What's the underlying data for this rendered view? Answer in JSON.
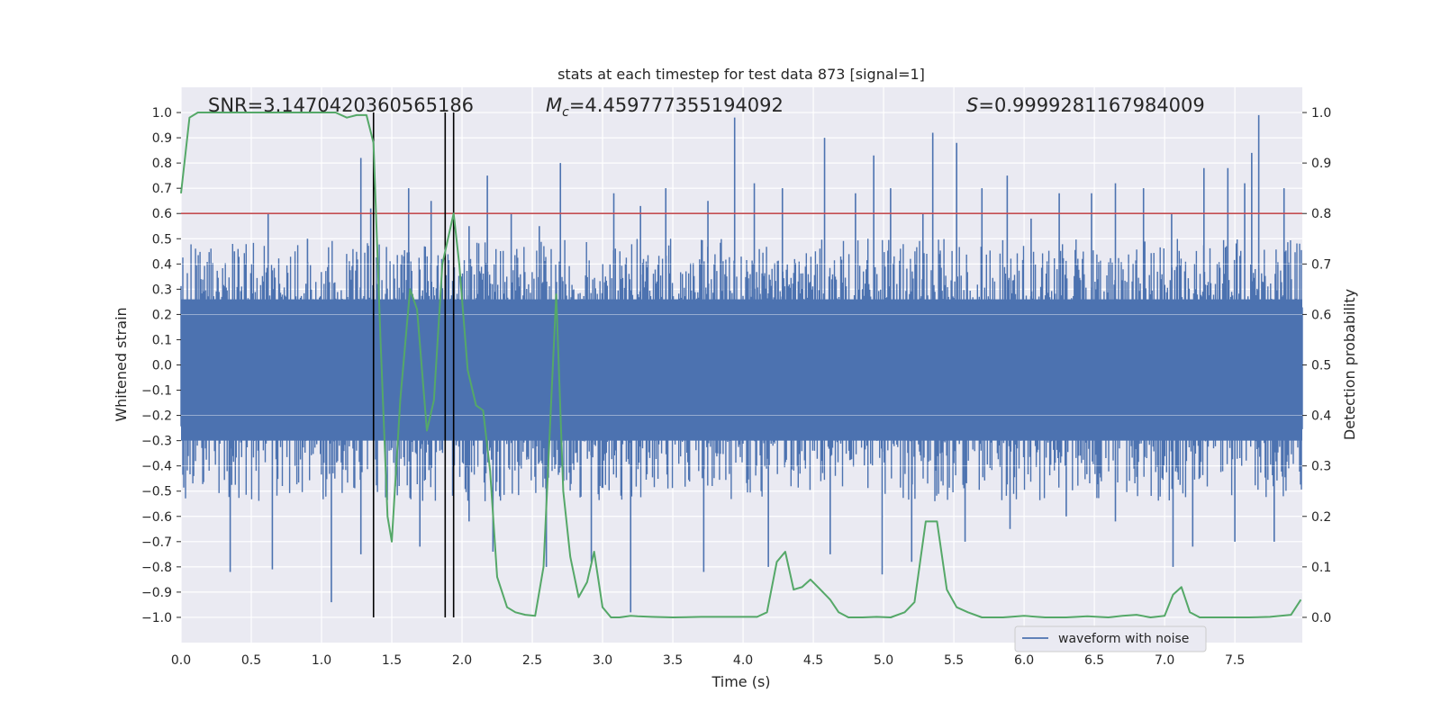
{
  "chart_data": {
    "type": "line",
    "title": "stats at each timestep for test data 873 [signal=1]",
    "xlabel": "Time (s)",
    "ylabel": "Whitened strain",
    "y2label": "Detection probability",
    "xlim": [
      0.0,
      7.98
    ],
    "ylim": [
      -1.1,
      1.1
    ],
    "y2lim": [
      -0.05,
      1.05
    ],
    "x_ticks": [
      "0.0",
      "0.5",
      "1.0",
      "1.5",
      "2.0",
      "2.5",
      "3.0",
      "3.5",
      "4.0",
      "4.5",
      "5.0",
      "5.5",
      "6.0",
      "6.5",
      "7.0",
      "7.5"
    ],
    "x_tick_values": [
      0.0,
      0.5,
      1.0,
      1.5,
      2.0,
      2.5,
      3.0,
      3.5,
      4.0,
      4.5,
      5.0,
      5.5,
      6.0,
      6.5,
      7.0,
      7.5
    ],
    "y_ticks": [
      "1.0",
      "0.9",
      "0.8",
      "0.7",
      "0.6",
      "0.5",
      "0.4",
      "0.3",
      "0.2",
      "0.1",
      "0.0",
      "−0.1",
      "−0.2",
      "−0.3",
      "−0.4",
      "−0.5",
      "−0.6",
      "−0.7",
      "−0.8",
      "−0.9",
      "−1.0"
    ],
    "y_tick_values": [
      1.0,
      0.9,
      0.8,
      0.7,
      0.6,
      0.5,
      0.4,
      0.3,
      0.2,
      0.1,
      0.0,
      -0.1,
      -0.2,
      -0.3,
      -0.4,
      -0.5,
      -0.6,
      -0.7,
      -0.8,
      -0.9,
      -1.0
    ],
    "y2_ticks": [
      "1.0",
      "0.9",
      "0.8",
      "0.7",
      "0.6",
      "0.5",
      "0.4",
      "0.3",
      "0.2",
      "0.1",
      "0.0"
    ],
    "y2_tick_values": [
      1.0,
      0.9,
      0.8,
      0.7,
      0.6,
      0.5,
      0.4,
      0.3,
      0.2,
      0.1,
      0.0
    ],
    "annotations": {
      "snr": "SNR=3.1470420360565186",
      "mc_symbol": "M",
      "mc_sub": "c",
      "mc_value": "=4.459777355194092",
      "s_symbol": "S",
      "s_value": "=0.9999281167984009"
    },
    "legend": {
      "label": "waveform with noise",
      "position": "lower-right"
    },
    "threshold": {
      "value": 0.6,
      "color": "#c44e52"
    },
    "vertical_lines": [
      1.37,
      1.88,
      1.94
    ],
    "waveform": {
      "name": "waveform with noise",
      "color": "#4c72b0",
      "t_start": 0.0,
      "t_end": 7.98,
      "core_envelope": 0.4,
      "spikes": [
        {
          "x": 0.38,
          "y": 0.45
        },
        {
          "x": 0.62,
          "y": 0.6
        },
        {
          "x": 0.9,
          "y": 0.5
        },
        {
          "x": 1.28,
          "y": 0.82
        },
        {
          "x": 1.35,
          "y": 0.62
        },
        {
          "x": 1.62,
          "y": 0.7
        },
        {
          "x": 1.78,
          "y": 0.65
        },
        {
          "x": 2.05,
          "y": 0.55
        },
        {
          "x": 2.18,
          "y": 0.75
        },
        {
          "x": 2.35,
          "y": 0.6
        },
        {
          "x": 2.55,
          "y": 0.55
        },
        {
          "x": 2.7,
          "y": 0.8
        },
        {
          "x": 3.08,
          "y": 0.68
        },
        {
          "x": 3.27,
          "y": 0.63
        },
        {
          "x": 3.45,
          "y": 0.7
        },
        {
          "x": 3.75,
          "y": 0.65
        },
        {
          "x": 3.94,
          "y": 0.98
        },
        {
          "x": 4.08,
          "y": 0.72
        },
        {
          "x": 4.28,
          "y": 0.7
        },
        {
          "x": 4.58,
          "y": 0.9
        },
        {
          "x": 4.8,
          "y": 0.68
        },
        {
          "x": 4.93,
          "y": 0.83
        },
        {
          "x": 5.05,
          "y": 0.7
        },
        {
          "x": 5.28,
          "y": 0.6
        },
        {
          "x": 5.35,
          "y": 0.92
        },
        {
          "x": 5.52,
          "y": 0.88
        },
        {
          "x": 5.7,
          "y": 0.7
        },
        {
          "x": 5.88,
          "y": 0.75
        },
        {
          "x": 6.05,
          "y": 0.58
        },
        {
          "x": 6.25,
          "y": 0.68
        },
        {
          "x": 6.48,
          "y": 0.68
        },
        {
          "x": 6.65,
          "y": 0.72
        },
        {
          "x": 6.85,
          "y": 0.7
        },
        {
          "x": 7.05,
          "y": 0.6
        },
        {
          "x": 7.28,
          "y": 0.78
        },
        {
          "x": 7.45,
          "y": 0.78
        },
        {
          "x": 7.57,
          "y": 0.72
        },
        {
          "x": 7.62,
          "y": 0.84
        },
        {
          "x": 7.67,
          "y": 0.99
        },
        {
          "x": 7.85,
          "y": 0.7
        },
        {
          "x": 0.35,
          "y": -0.82
        },
        {
          "x": 0.65,
          "y": -0.81
        },
        {
          "x": 1.07,
          "y": -0.94
        },
        {
          "x": 1.28,
          "y": -0.75
        },
        {
          "x": 1.7,
          "y": -0.72
        },
        {
          "x": 2.05,
          "y": -0.62
        },
        {
          "x": 2.22,
          "y": -0.74
        },
        {
          "x": 2.6,
          "y": -0.8
        },
        {
          "x": 2.92,
          "y": -0.78
        },
        {
          "x": 3.2,
          "y": -0.98
        },
        {
          "x": 3.72,
          "y": -0.82
        },
        {
          "x": 4.18,
          "y": -0.8
        },
        {
          "x": 4.62,
          "y": -0.75
        },
        {
          "x": 4.99,
          "y": -0.83
        },
        {
          "x": 5.2,
          "y": -0.78
        },
        {
          "x": 5.58,
          "y": -0.7
        },
        {
          "x": 5.9,
          "y": -0.65
        },
        {
          "x": 6.3,
          "y": -0.6
        },
        {
          "x": 6.65,
          "y": -0.62
        },
        {
          "x": 7.06,
          "y": -0.8
        },
        {
          "x": 7.2,
          "y": -0.72
        },
        {
          "x": 7.5,
          "y": -0.7
        },
        {
          "x": 7.78,
          "y": -0.7
        }
      ]
    },
    "detection_probability": {
      "name": "detection probability",
      "color": "#55a868",
      "x": [
        0.0,
        0.06,
        0.12,
        0.2,
        0.3,
        0.4,
        0.5,
        0.6,
        0.7,
        0.8,
        0.9,
        1.0,
        1.1,
        1.18,
        1.25,
        1.32,
        1.37,
        1.42,
        1.47,
        1.5,
        1.56,
        1.63,
        1.68,
        1.75,
        1.8,
        1.86,
        1.9,
        1.94,
        1.98,
        2.04,
        2.1,
        2.15,
        2.2,
        2.25,
        2.32,
        2.38,
        2.45,
        2.52,
        2.58,
        2.63,
        2.67,
        2.72,
        2.77,
        2.83,
        2.89,
        2.94,
        3.0,
        3.06,
        3.12,
        3.2,
        3.25,
        3.35,
        3.5,
        3.7,
        3.9,
        4.1,
        4.17,
        4.24,
        4.3,
        4.36,
        4.42,
        4.48,
        4.55,
        4.62,
        4.68,
        4.75,
        4.85,
        4.95,
        5.05,
        5.15,
        5.22,
        5.3,
        5.38,
        5.45,
        5.52,
        5.6,
        5.7,
        5.85,
        6.0,
        6.15,
        6.3,
        6.45,
        6.6,
        6.7,
        6.8,
        6.9,
        7.0,
        7.06,
        7.12,
        7.18,
        7.25,
        7.4,
        7.6,
        7.75,
        7.9,
        7.97
      ],
      "y": [
        0.84,
        0.99,
        1.0,
        1.0,
        1.0,
        1.0,
        1.0,
        1.0,
        1.0,
        1.0,
        1.0,
        1.0,
        1.0,
        0.99,
        0.995,
        0.995,
        0.94,
        0.55,
        0.2,
        0.15,
        0.43,
        0.65,
        0.61,
        0.37,
        0.43,
        0.7,
        0.75,
        0.8,
        0.7,
        0.49,
        0.42,
        0.41,
        0.29,
        0.08,
        0.02,
        0.01,
        0.005,
        0.003,
        0.1,
        0.4,
        0.64,
        0.25,
        0.12,
        0.04,
        0.07,
        0.13,
        0.02,
        0.0,
        0.0,
        0.003,
        0.002,
        0.001,
        0.0,
        0.001,
        0.001,
        0.001,
        0.01,
        0.11,
        0.13,
        0.055,
        0.06,
        0.075,
        0.055,
        0.035,
        0.01,
        0.0,
        0.0,
        0.001,
        0.0,
        0.01,
        0.03,
        0.19,
        0.19,
        0.055,
        0.02,
        0.01,
        0.0,
        0.0,
        0.003,
        0.0,
        0.0,
        0.002,
        0.0,
        0.003,
        0.005,
        0.0,
        0.003,
        0.045,
        0.06,
        0.01,
        0.0,
        0.0,
        0.0,
        0.001,
        0.005,
        0.035
      ]
    }
  }
}
